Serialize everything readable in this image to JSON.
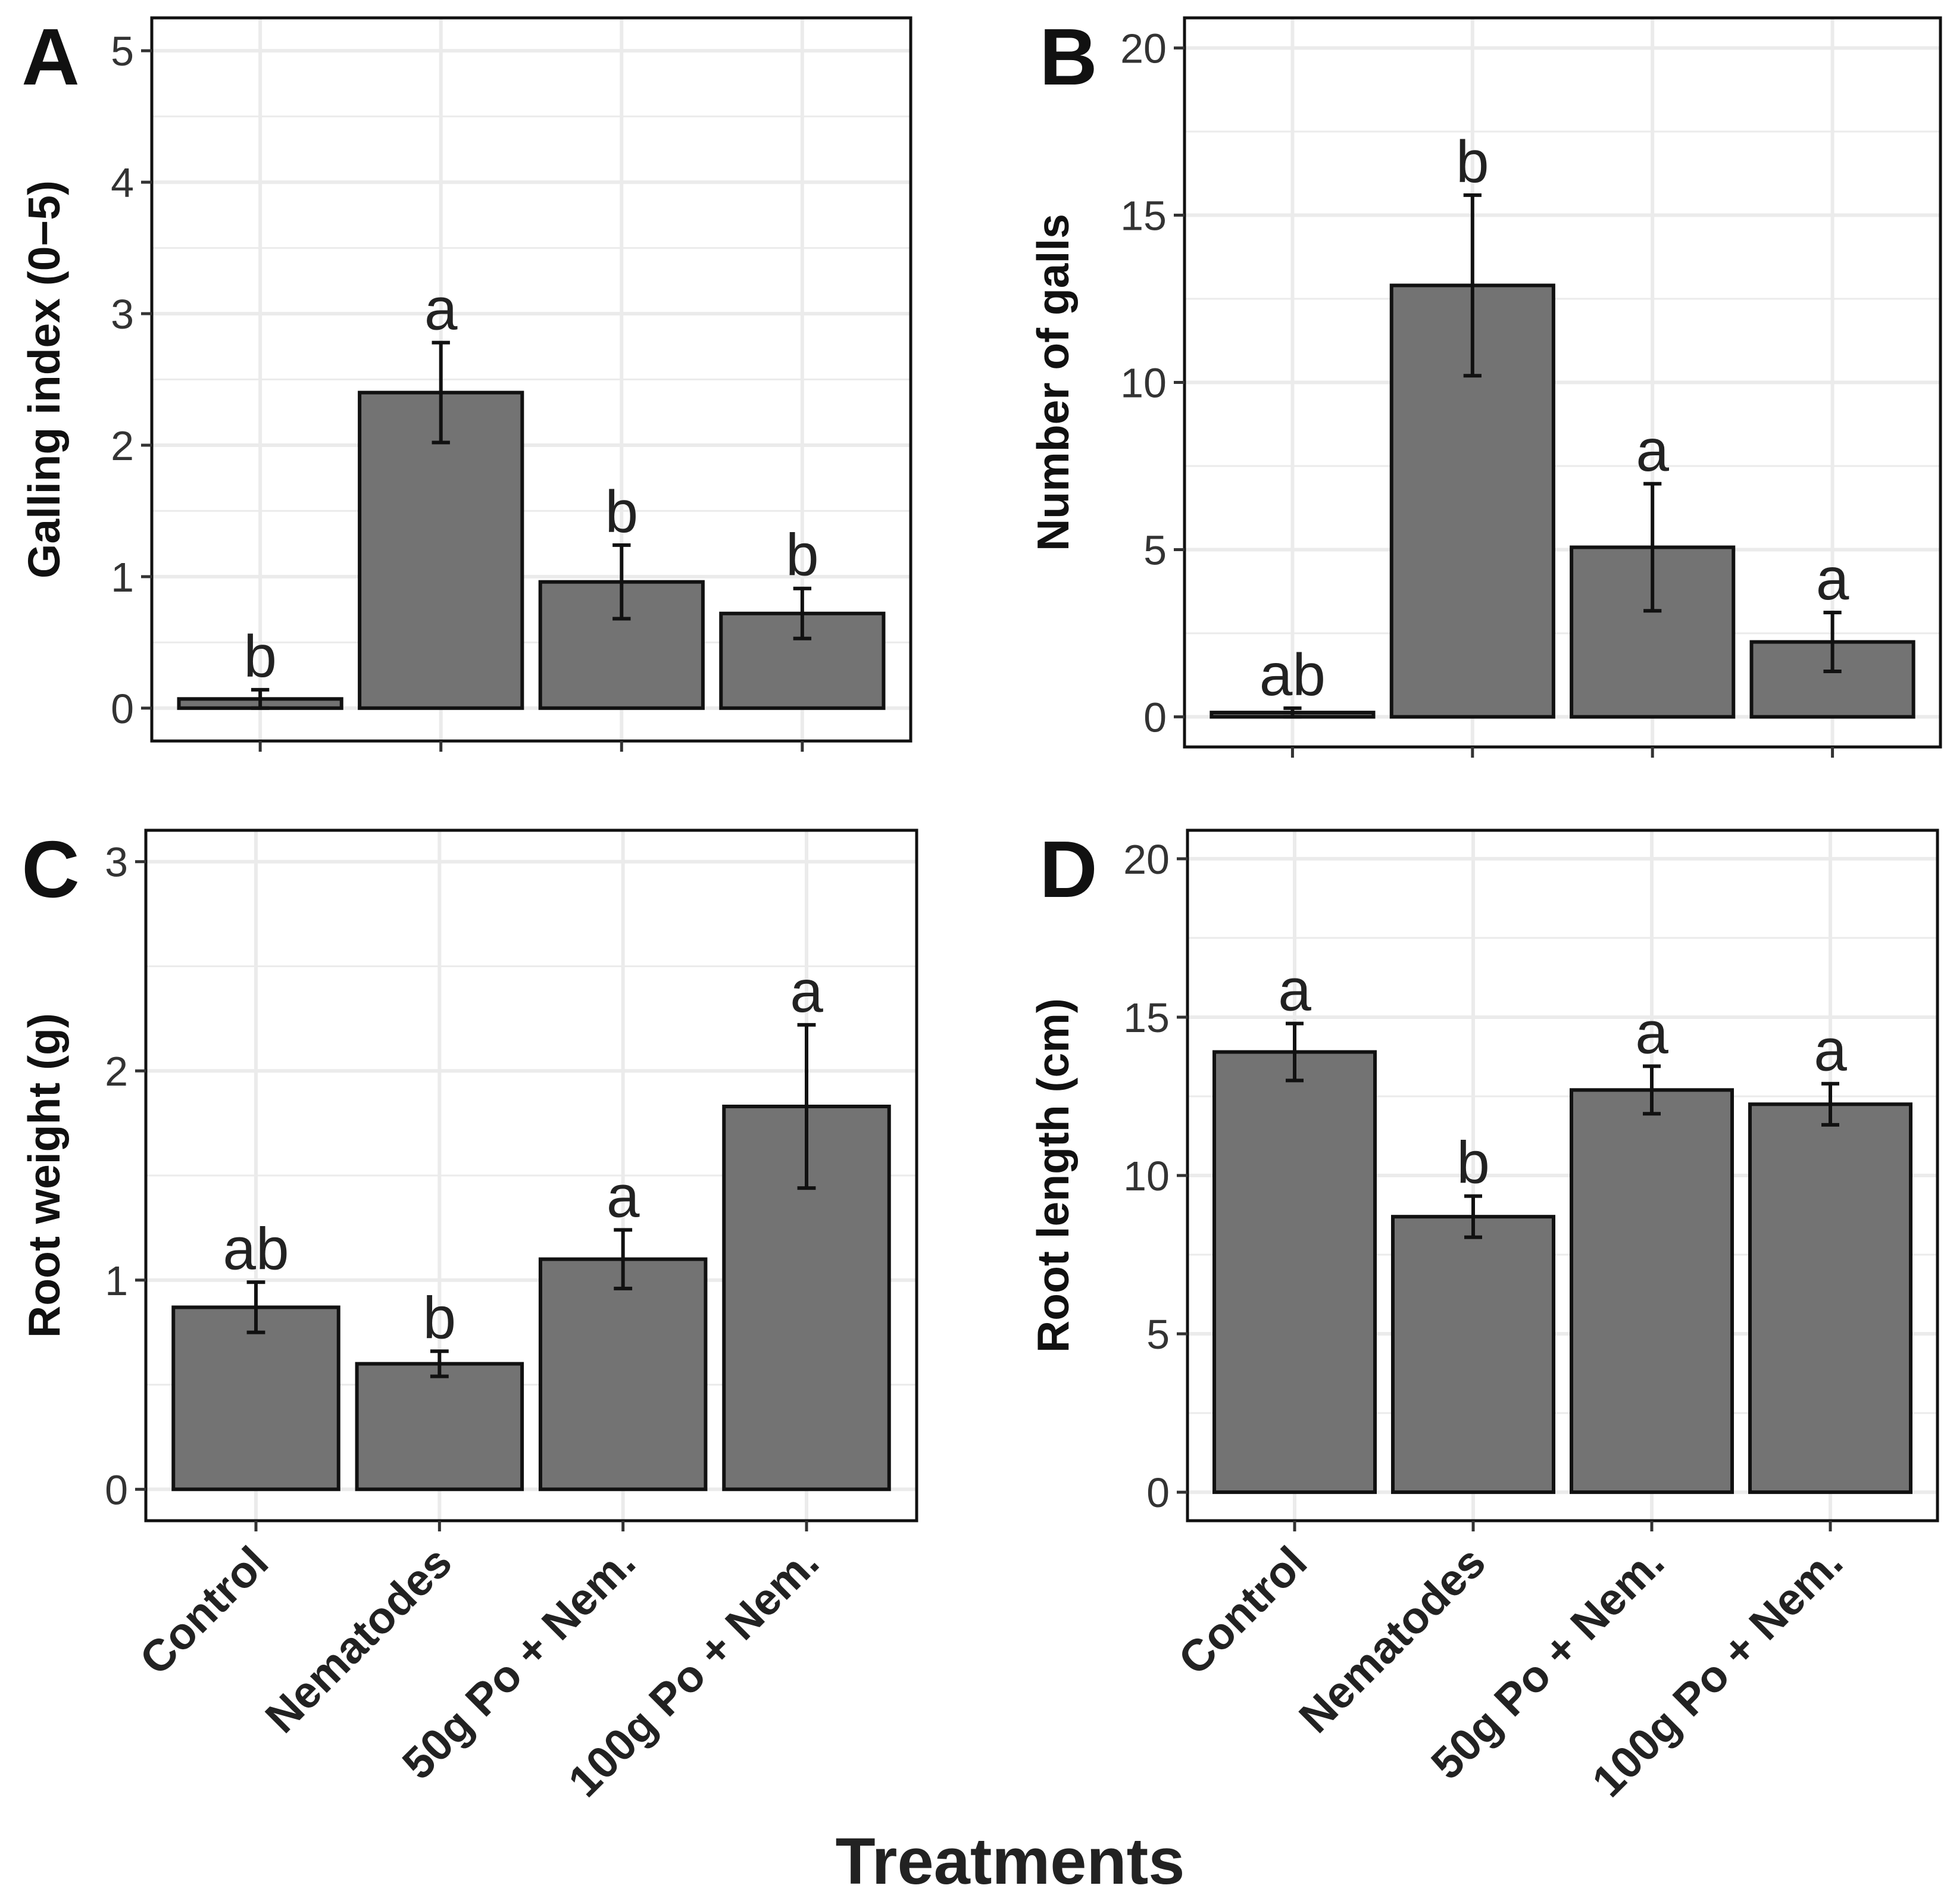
{
  "figure": {
    "xlabel": "Treatments",
    "categories": [
      "Control",
      "Nematodes",
      "50g Po + Nem.",
      "100g Po + Nem."
    ],
    "bar_color": "#737373",
    "grid_color": "#ebebeb"
  },
  "chart_data": [
    {
      "type": "bar",
      "panel_label": "A",
      "ylabel": "Galling index (0−5)",
      "ylim": [
        -0.25,
        5.25
      ],
      "yticks": [
        0,
        1,
        2,
        3,
        4,
        5
      ],
      "ytick_labels": [
        "0",
        "1",
        "2",
        "3",
        "4",
        "5"
      ],
      "categories": [
        "Control",
        "Nematodes",
        "50g Po + Nem.",
        "100g Po + Nem."
      ],
      "values": [
        0.07,
        2.4,
        0.96,
        0.72
      ],
      "error": [
        0.07,
        0.38,
        0.28,
        0.19
      ],
      "letters": [
        "b",
        "a",
        "b",
        "b"
      ],
      "show_xtick_labels": false
    },
    {
      "type": "bar",
      "panel_label": "B",
      "ylabel": "Number of galls",
      "ylim": [
        -0.9,
        20.9
      ],
      "yticks": [
        0,
        5,
        10,
        15,
        20
      ],
      "ytick_labels": [
        "0",
        "5",
        "10",
        "15",
        "20"
      ],
      "categories": [
        "Control",
        "Nematodes",
        "50g Po + Nem.",
        "100g Po + Nem."
      ],
      "values": [
        0.13,
        12.9,
        5.07,
        2.24
      ],
      "error": [
        0.13,
        2.7,
        1.9,
        0.88
      ],
      "letters": [
        "ab",
        "b",
        "a",
        "a"
      ],
      "show_xtick_labels": false
    },
    {
      "type": "bar",
      "panel_label": "C",
      "ylabel": "Root weight (g)",
      "ylim": [
        -0.15,
        3.15
      ],
      "yticks": [
        0,
        1,
        2,
        3
      ],
      "ytick_labels": [
        "0",
        "1",
        "2",
        "3"
      ],
      "categories": [
        "Control",
        "Nematodes",
        "50g Po + Nem.",
        "100g Po + Nem."
      ],
      "values": [
        0.87,
        0.6,
        1.1,
        1.83
      ],
      "error": [
        0.12,
        0.06,
        0.14,
        0.39
      ],
      "letters": [
        "ab",
        "b",
        "a",
        "a"
      ],
      "show_xtick_labels": true
    },
    {
      "type": "bar",
      "panel_label": "D",
      "ylabel": "Root length (cm)",
      "ylim": [
        -0.9,
        20.9
      ],
      "yticks": [
        0,
        5,
        10,
        15,
        20
      ],
      "ytick_labels": [
        "0",
        "5",
        "10",
        "15",
        "20"
      ],
      "categories": [
        "Control",
        "Nematodes",
        "50g Po + Nem.",
        "100g Po + Nem."
      ],
      "values": [
        13.9,
        8.7,
        12.7,
        12.25
      ],
      "error": [
        0.9,
        0.65,
        0.75,
        0.65
      ],
      "letters": [
        "a",
        "b",
        "a",
        "a"
      ],
      "show_xtick_labels": true
    }
  ]
}
